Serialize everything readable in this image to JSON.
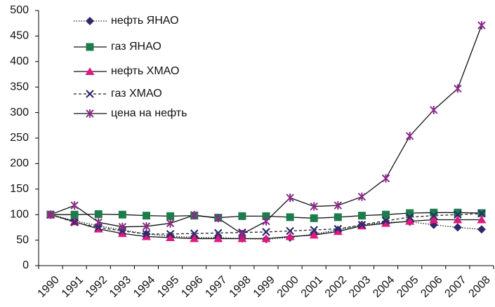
{
  "chart_data": {
    "type": "line",
    "categories": [
      "1990",
      "1991",
      "1992",
      "1993",
      "1994",
      "1995",
      "1996",
      "1997",
      "1998",
      "1999",
      "2000",
      "2001",
      "2002",
      "2003",
      "2004",
      "2005",
      "2006",
      "2007",
      "2008"
    ],
    "series": [
      {
        "name": "нефть ЯНАО",
        "color": "#2d2a6b",
        "line_color": "#222",
        "line_style": "dotted",
        "marker": "diamond",
        "values": [
          100,
          88,
          78,
          70,
          62,
          58,
          55,
          55,
          53,
          52,
          55,
          62,
          70,
          80,
          85,
          86,
          80,
          75,
          71
        ]
      },
      {
        "name": "газ ЯНАО",
        "color": "#1b7d4c",
        "line_color": "#111",
        "line_style": "solid",
        "marker": "square",
        "values": [
          100,
          100,
          101,
          100,
          98,
          97,
          98,
          94,
          97,
          97,
          95,
          93,
          95,
          98,
          100,
          103,
          104,
          104,
          103
        ]
      },
      {
        "name": "нефть ХМАО",
        "color": "#e2187f",
        "line_color": "#111",
        "line_style": "solid",
        "marker": "triangle",
        "values": [
          100,
          86,
          72,
          63,
          57,
          55,
          53,
          53,
          53,
          53,
          57,
          60,
          67,
          78,
          83,
          87,
          90,
          90,
          90
        ]
      },
      {
        "name": "газ ХМАО",
        "color": "#2d2a6b",
        "line_color": "#222",
        "line_style": "dashed",
        "marker": "x",
        "values": [
          100,
          85,
          75,
          68,
          62,
          62,
          63,
          64,
          65,
          66,
          68,
          70,
          72,
          80,
          88,
          95,
          98,
          100,
          102
        ]
      },
      {
        "name": "цена на нефть",
        "color": "#8b2b87",
        "line_color": "#111",
        "line_style": "solid",
        "marker": "star",
        "values": [
          100,
          118,
          85,
          76,
          77,
          83,
          99,
          93,
          62,
          87,
          133,
          116,
          118,
          135,
          171,
          254,
          305,
          347,
          471
        ]
      }
    ],
    "ylim": [
      0,
      500
    ],
    "yticks": [
      0,
      50,
      100,
      150,
      200,
      250,
      300,
      350,
      400,
      450,
      500
    ],
    "grid": false,
    "legend": "top-left"
  }
}
